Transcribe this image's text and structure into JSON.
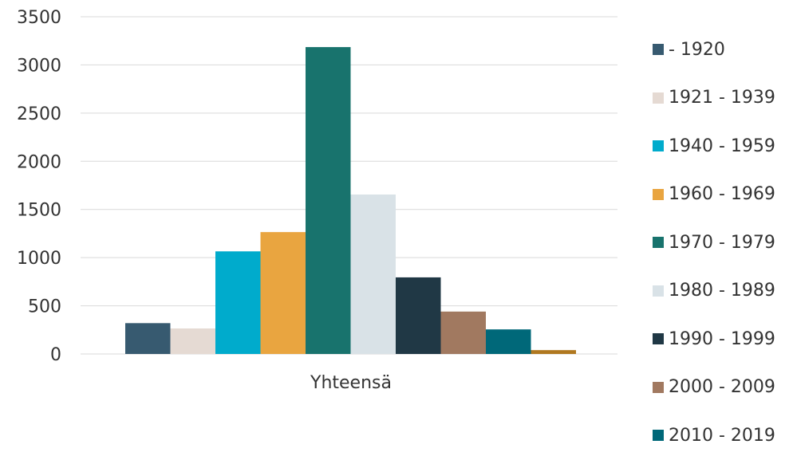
{
  "chart_data": {
    "type": "bar",
    "categories": [
      "Yhteensä"
    ],
    "series": [
      {
        "name": "- 1920",
        "values": [
          320
        ],
        "color": "#375a70"
      },
      {
        "name": "1921 - 1939",
        "values": [
          265
        ],
        "color": "#e5dad3"
      },
      {
        "name": "1940 - 1959",
        "values": [
          1065
        ],
        "color": "#00abcc"
      },
      {
        "name": "1960 - 1969",
        "values": [
          1265
        ],
        "color": "#e9a540"
      },
      {
        "name": "1970 - 1979",
        "values": [
          3185
        ],
        "color": "#18736d"
      },
      {
        "name": "1980 - 1989",
        "values": [
          1655
        ],
        "color": "#d9e2e7"
      },
      {
        "name": "1990 - 1999",
        "values": [
          795
        ],
        "color": "#203845"
      },
      {
        "name": "2000 - 2009",
        "values": [
          440
        ],
        "color": "#a17960"
      },
      {
        "name": "2010 - 2019",
        "values": [
          255
        ],
        "color": "#006879"
      },
      {
        "name": "",
        "values": [
          40
        ],
        "color": "#b07820"
      }
    ],
    "yticks": [
      "0",
      "500",
      "1000",
      "1500",
      "2000",
      "2500",
      "3000",
      "3500"
    ],
    "ylim": [
      0,
      3500
    ],
    "grid": true,
    "legend_position": "right"
  }
}
